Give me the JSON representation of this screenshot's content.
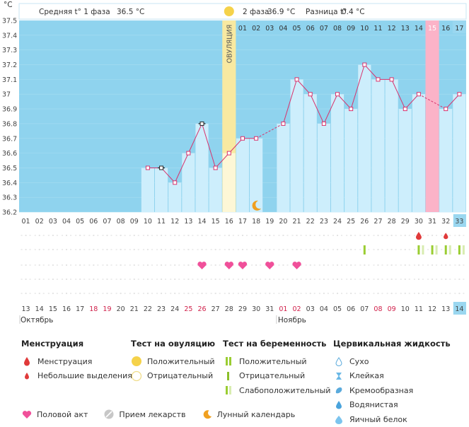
{
  "unit": "°C",
  "header": {
    "phase1_label": "Средняя t° 1 фаза",
    "phase1_value": "36.5 °C",
    "phase2_label": "2 фаза",
    "phase2_value": "36.9 °C",
    "diff_label": "Разница t°",
    "diff_value": "0.4 °C",
    "ovulation_label": "ОВУЛЯЦИЯ"
  },
  "colors": {
    "plot_bg": "#8fd3ee",
    "bar_fill": "#cdeefc",
    "bar_edge": "#ffffff",
    "line": "#d8336d",
    "ovulation": "#f8e9a1",
    "menstruation_col": "#fbb3c8",
    "heart": "#f0509a",
    "drop": "#e03a3a",
    "test": "#9acd32"
  },
  "chart_data": {
    "type": "line",
    "title": "",
    "ylabel": "°C",
    "ylim": [
      36.2,
      37.5
    ],
    "yticks": [
      "37.5",
      "37.4",
      "37.3",
      "37.2",
      "37.1",
      "37",
      "36.9",
      "36.8",
      "36.7",
      "36.6",
      "36.5",
      "36.4",
      "36.3",
      "36.2"
    ],
    "cycle_days": [
      "01",
      "02",
      "03",
      "04",
      "05",
      "06",
      "07",
      "08",
      "09",
      "10",
      "11",
      "12",
      "13",
      "14",
      "15",
      "16",
      "17",
      "18",
      "19",
      "20",
      "21",
      "22",
      "23",
      "24",
      "25",
      "26",
      "27",
      "28",
      "29",
      "30",
      "31",
      "32",
      "33"
    ],
    "post_ovulation_days": [
      "01",
      "02",
      "03",
      "04",
      "05",
      "06",
      "07",
      "08",
      "09",
      "10",
      "11",
      "12",
      "13",
      "14",
      "15",
      "16",
      "17"
    ],
    "calendar_dates": [
      "13",
      "14",
      "15",
      "16",
      "17",
      "18",
      "19",
      "20",
      "21",
      "22",
      "23",
      "24",
      "25",
      "26",
      "27",
      "28",
      "29",
      "30",
      "31",
      "01",
      "02",
      "03",
      "04",
      "05",
      "06",
      "07",
      "08",
      "09",
      "10",
      "11",
      "12",
      "13",
      "14"
    ],
    "weekend_date_indices": [
      5,
      6,
      12,
      13,
      19,
      20,
      26,
      27
    ],
    "months": [
      "Октябрь",
      "Ноябрь"
    ],
    "temperatures": [
      null,
      null,
      null,
      null,
      null,
      null,
      null,
      null,
      null,
      36.5,
      36.5,
      36.4,
      36.6,
      36.8,
      36.5,
      36.6,
      36.7,
      36.7,
      null,
      36.8,
      37.1,
      37.0,
      36.8,
      37.0,
      36.9,
      37.2,
      37.1,
      37.1,
      36.9,
      37.0,
      null,
      36.9,
      37.0
    ],
    "excluded_marker_days": [
      11,
      14
    ],
    "ovulation_day": 16,
    "menstruation_day": 31,
    "current_day": 33,
    "moon_day": 18,
    "menstruation_drops": [
      30
    ],
    "small_discharge_drops": [
      32
    ],
    "intercourse_days": [
      14,
      16,
      17,
      19,
      21
    ],
    "positive_pregnancy_tests": [
      26,
      30,
      32
    ],
    "faint_pregnancy_tests": [
      31,
      33
    ]
  },
  "legend": {
    "menstruation": {
      "title": "Менструация",
      "items": [
        "Менструация",
        "Небольшие выделения"
      ]
    },
    "ovulation_test": {
      "title": "Тест на овуляцию",
      "items": [
        "Положительный",
        "Отрицательный"
      ]
    },
    "pregnancy_test": {
      "title": "Тест на беременность",
      "items": [
        "Положительный",
        "Отрицательный",
        "Слабоположительный"
      ]
    },
    "cervical": {
      "title": "Цервикальная жидкость",
      "items": [
        "Сухо",
        "Клейкая",
        "Кремообразная",
        "Водянистая",
        "Яичный белок"
      ]
    },
    "bottom": [
      "Половой акт",
      "Прием лекарств",
      "Лунный календарь"
    ]
  }
}
